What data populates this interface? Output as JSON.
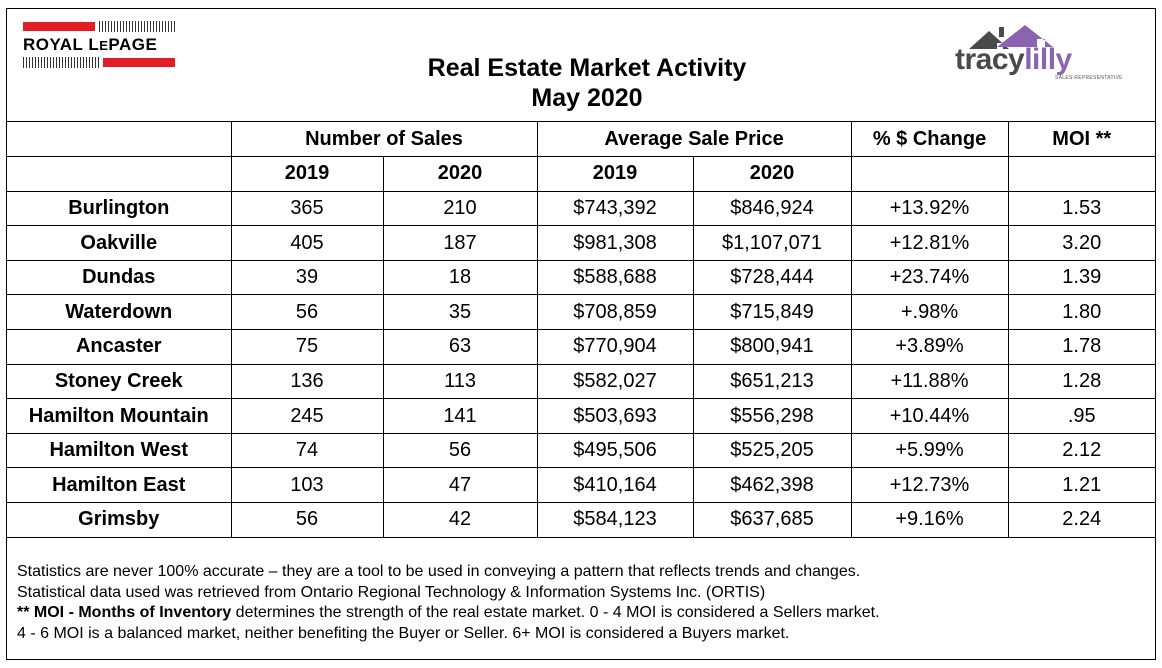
{
  "header": {
    "title_line1": "Real Estate Market Activity",
    "title_line2": "May 2020",
    "logo_left_text": "ROYAL LEPAGE",
    "logo_left_parts": [
      "ROYAL L",
      "E",
      "PAGE"
    ],
    "logo_right_text1": "tracy",
    "logo_right_text2": "lilly",
    "logo_right_sub": "SALES REPRESENTATIVE",
    "brand_red": "#e31d24",
    "brand_purple": "#8a63b1"
  },
  "table": {
    "group_headers": {
      "sales": "Number of Sales",
      "price": "Average Sale Price",
      "change": "% $ Change",
      "moi": "MOI **"
    },
    "year_headers": [
      "2019",
      "2020",
      "2019",
      "2020"
    ],
    "rows": [
      {
        "city": "Burlington",
        "sales2019": "365",
        "sales2020": "210",
        "price2019": "$743,392",
        "price2020": "$846,924",
        "change": "+13.92%",
        "moi": "1.53"
      },
      {
        "city": "Oakville",
        "sales2019": "405",
        "sales2020": "187",
        "price2019": "$981,308",
        "price2020": "$1,107,071",
        "change": "+12.81%",
        "moi": "3.20"
      },
      {
        "city": "Dundas",
        "sales2019": "39",
        "sales2020": "18",
        "price2019": "$588,688",
        "price2020": "$728,444",
        "change": "+23.74%",
        "moi": "1.39"
      },
      {
        "city": "Waterdown",
        "sales2019": "56",
        "sales2020": "35",
        "price2019": "$708,859",
        "price2020": "$715,849",
        "change": "+.98%",
        "moi": "1.80"
      },
      {
        "city": "Ancaster",
        "sales2019": "75",
        "sales2020": "63",
        "price2019": "$770,904",
        "price2020": "$800,941",
        "change": "+3.89%",
        "moi": "1.78"
      },
      {
        "city": "Stoney Creek",
        "sales2019": "136",
        "sales2020": "113",
        "price2019": "$582,027",
        "price2020": "$651,213",
        "change": "+11.88%",
        "moi": "1.28"
      },
      {
        "city": "Hamilton Mountain",
        "sales2019": "245",
        "sales2020": "141",
        "price2019": "$503,693",
        "price2020": "$556,298",
        "change": "+10.44%",
        "moi": ".95"
      },
      {
        "city": "Hamilton West",
        "sales2019": "74",
        "sales2020": "56",
        "price2019": "$495,506",
        "price2020": "$525,205",
        "change": "+5.99%",
        "moi": "2.12"
      },
      {
        "city": "Hamilton East",
        "sales2019": "103",
        "sales2020": "47",
        "price2019": "$410,164",
        "price2020": "$462,398",
        "change": "+12.73%",
        "moi": "1.21"
      },
      {
        "city": "Grimsby",
        "sales2019": "56",
        "sales2020": "42",
        "price2019": "$584,123",
        "price2020": "$637,685",
        "change": "+9.16%",
        "moi": "2.24"
      }
    ]
  },
  "footer": {
    "line1": "Statistics are never 100% accurate – they are a tool to be used in conveying a pattern that reflects trends and changes.",
    "line2": "Statistical data used was retrieved from Ontario Regional Technology & Information Systems Inc. (ORTIS)",
    "line3_bold": "** MOI - Months of Inventory",
    "line3_rest": " determines the strength of the real estate market. 0 - 4 MOI is considered a Sellers market.",
    "line4": "4 - 6 MOI is a balanced market, neither benefiting the Buyer or Seller. 6+ MOI is considered a Buyers market."
  }
}
